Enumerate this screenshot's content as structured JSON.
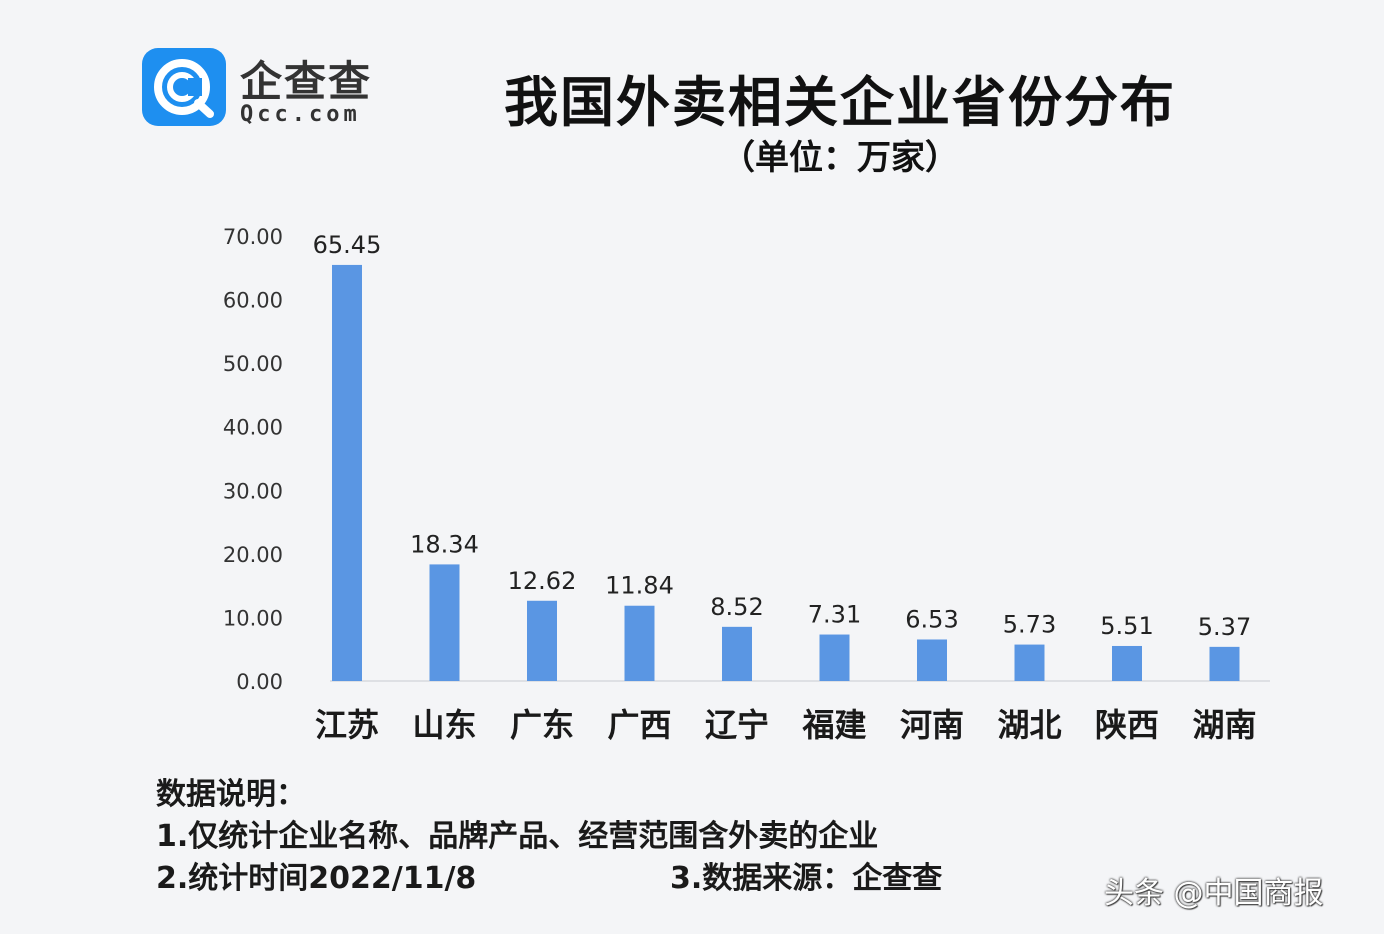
{
  "logo": {
    "cn": "企查查",
    "en": "Qcc.com"
  },
  "title": "我国外卖相关企业省份分布",
  "subtitle": "（单位：万家）",
  "chart_data": {
    "type": "bar",
    "categories": [
      "江苏",
      "山东",
      "广东",
      "广西",
      "辽宁",
      "福建",
      "河南",
      "湖北",
      "陕西",
      "湖南"
    ],
    "values": [
      65.45,
      18.34,
      12.62,
      11.84,
      8.52,
      7.31,
      6.53,
      5.73,
      5.51,
      5.37
    ],
    "value_labels": [
      "65.45",
      "18.34",
      "12.62",
      "11.84",
      "8.52",
      "7.31",
      "6.53",
      "5.73",
      "5.51",
      "5.37"
    ],
    "ylim": [
      0,
      70
    ],
    "yticks": [
      "0.00",
      "10.00",
      "20.00",
      "30.00",
      "40.00",
      "50.00",
      "60.00",
      "70.00"
    ],
    "bar_color": "#5a96e3",
    "grid": false
  },
  "notes": {
    "heading": "数据说明：",
    "line1": "1.仅统计企业名称、品牌产品、经营范围含外卖的企业",
    "line2": "2.统计时间2022/11/8",
    "line3": "3.数据来源：企查查"
  },
  "watermark": "头条 @中国商报"
}
